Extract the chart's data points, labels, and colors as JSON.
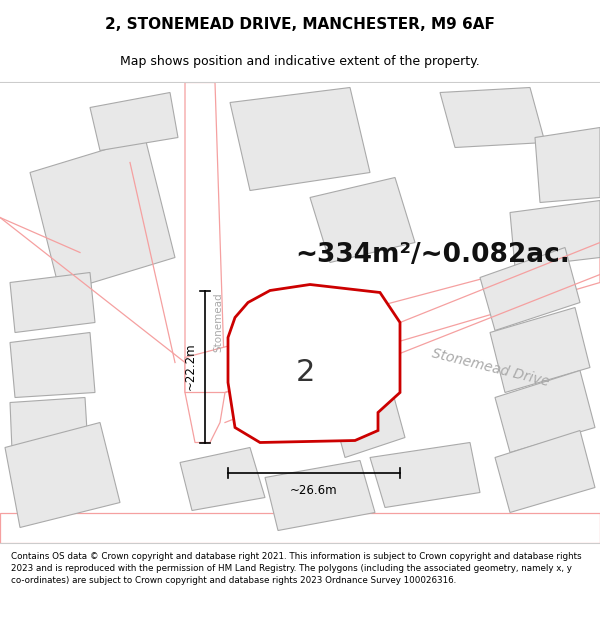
{
  "title_line1": "2, STONEMEAD DRIVE, MANCHESTER, M9 6AF",
  "title_line2": "Map shows position and indicative extent of the property.",
  "area_text": "~334m²/~0.082ac.",
  "label_number": "2",
  "dim_width": "~26.6m",
  "dim_height": "~22.2m",
  "footer_text": "Contains OS data © Crown copyright and database right 2021. This information is subject to Crown copyright and database rights 2023 and is reproduced with the permission of HM Land Registry. The polygons (including the associated geometry, namely x, y co-ordinates) are subject to Crown copyright and database rights 2023 Ordnance Survey 100026316.",
  "road_label": "Stonemead Drive",
  "street_label_vert": "Stonemead",
  "bg_color": "#ffffff",
  "map_bg": "#ffffff",
  "building_fill": "#e8e8e8",
  "building_edge": "#aaaaaa",
  "road_fill": "#ffffff",
  "road_edge": "#f5a0a0",
  "property_fill": "#ffffff",
  "property_edge": "#cc0000",
  "dim_color": "#000000",
  "road_label_color": "#aaaaaa",
  "area_fontsize": 20,
  "num_fontsize": 22,
  "title_fontsize": 11,
  "subtitle_fontsize": 9
}
